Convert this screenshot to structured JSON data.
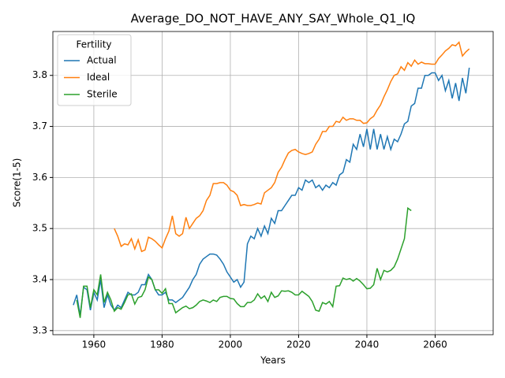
{
  "chart_data": {
    "type": "line",
    "title": "Average_DO_NOT_HAVE_ANY_SAY_Whole_Q1_IQ",
    "xlabel": "Years",
    "ylabel": "Score(1-5)",
    "legend_title": "Fertility",
    "legend_loc": "upper left",
    "grid": true,
    "xlim": [
      1948,
      2077
    ],
    "xticks": [
      1960,
      1980,
      2000,
      2020,
      2040,
      2060
    ],
    "ylim": [
      3.292,
      3.886
    ],
    "yticks": [
      3.3,
      3.4,
      3.5,
      3.6,
      3.7,
      3.8
    ],
    "series": [
      {
        "name": "Actual",
        "color": "#1f77b4",
        "x": [
          1954,
          1955,
          1956,
          1957,
          1958,
          1959,
          1960,
          1961,
          1962,
          1963,
          1964,
          1965,
          1966,
          1967,
          1968,
          1969,
          1970,
          1971,
          1972,
          1973,
          1974,
          1975,
          1976,
          1977,
          1978,
          1979,
          1980,
          1981,
          1982,
          1983,
          1984,
          1985,
          1986,
          1987,
          1988,
          1989,
          1990,
          1991,
          1992,
          1993,
          1994,
          1995,
          1996,
          1997,
          1998,
          1999,
          2000,
          2001,
          2002,
          2003,
          2004,
          2005,
          2006,
          2007,
          2008,
          2009,
          2010,
          2011,
          2012,
          2013,
          2014,
          2015,
          2016,
          2017,
          2018,
          2019,
          2020,
          2021,
          2022,
          2023,
          2024,
          2025,
          2026,
          2027,
          2028,
          2029,
          2030,
          2031,
          2032,
          2033,
          2034,
          2035,
          2036,
          2037,
          2038,
          2039,
          2040,
          2041,
          2042,
          2043,
          2044,
          2045,
          2046,
          2047,
          2048,
          2049,
          2050,
          2051,
          2052,
          2053,
          2054,
          2055,
          2056,
          2057,
          2058,
          2059,
          2060,
          2061,
          2062,
          2063,
          2064,
          2065,
          2066,
          2067,
          2068,
          2069,
          2070
        ],
        "values": [
          3.35,
          3.37,
          3.33,
          3.385,
          3.38,
          3.34,
          3.375,
          3.36,
          3.4,
          3.345,
          3.37,
          3.35,
          3.34,
          3.35,
          3.345,
          3.36,
          3.375,
          3.37,
          3.37,
          3.375,
          3.39,
          3.39,
          3.41,
          3.4,
          3.38,
          3.37,
          3.37,
          3.375,
          3.36,
          3.36,
          3.355,
          3.36,
          3.365,
          3.375,
          3.385,
          3.4,
          3.41,
          3.43,
          3.44,
          3.445,
          3.45,
          3.45,
          3.448,
          3.44,
          3.43,
          3.415,
          3.405,
          3.395,
          3.4,
          3.385,
          3.395,
          3.47,
          3.485,
          3.48,
          3.5,
          3.485,
          3.505,
          3.49,
          3.52,
          3.51,
          3.535,
          3.535,
          3.545,
          3.555,
          3.565,
          3.565,
          3.58,
          3.575,
          3.595,
          3.59,
          3.595,
          3.58,
          3.585,
          3.575,
          3.585,
          3.58,
          3.59,
          3.585,
          3.605,
          3.61,
          3.635,
          3.63,
          3.665,
          3.655,
          3.685,
          3.66,
          3.695,
          3.655,
          3.695,
          3.655,
          3.685,
          3.655,
          3.68,
          3.655,
          3.675,
          3.67,
          3.685,
          3.705,
          3.71,
          3.74,
          3.745,
          3.775,
          3.775,
          3.8,
          3.8,
          3.805,
          3.805,
          3.79,
          3.8,
          3.77,
          3.79,
          3.755,
          3.785,
          3.75,
          3.795,
          3.765,
          3.815
        ]
      },
      {
        "name": "Ideal",
        "color": "#ff7f0e",
        "x": [
          1966,
          1967,
          1968,
          1969,
          1970,
          1971,
          1972,
          1973,
          1974,
          1975,
          1976,
          1977,
          1978,
          1979,
          1980,
          1981,
          1982,
          1983,
          1984,
          1985,
          1986,
          1987,
          1988,
          1989,
          1990,
          1991,
          1992,
          1993,
          1994,
          1995,
          1996,
          1997,
          1998,
          1999,
          2000,
          2001,
          2002,
          2003,
          2004,
          2005,
          2006,
          2007,
          2008,
          2009,
          2010,
          2011,
          2012,
          2013,
          2014,
          2015,
          2016,
          2017,
          2018,
          2019,
          2020,
          2021,
          2022,
          2023,
          2024,
          2025,
          2026,
          2027,
          2028,
          2029,
          2030,
          2031,
          2032,
          2033,
          2034,
          2035,
          2036,
          2037,
          2038,
          2039,
          2040,
          2041,
          2042,
          2043,
          2044,
          2045,
          2046,
          2047,
          2048,
          2049,
          2050,
          2051,
          2052,
          2053,
          2054,
          2055,
          2056,
          2057,
          2058,
          2059,
          2060,
          2061,
          2062,
          2063,
          2064,
          2065,
          2066,
          2067,
          2068,
          2069,
          2070
        ],
        "values": [
          3.5,
          3.485,
          3.465,
          3.47,
          3.468,
          3.48,
          3.46,
          3.478,
          3.455,
          3.458,
          3.483,
          3.48,
          3.475,
          3.468,
          3.462,
          3.48,
          3.495,
          3.525,
          3.49,
          3.485,
          3.49,
          3.522,
          3.5,
          3.51,
          3.52,
          3.525,
          3.535,
          3.555,
          3.565,
          3.588,
          3.588,
          3.59,
          3.59,
          3.585,
          3.575,
          3.572,
          3.565,
          3.545,
          3.547,
          3.545,
          3.545,
          3.547,
          3.55,
          3.548,
          3.57,
          3.575,
          3.58,
          3.59,
          3.61,
          3.62,
          3.635,
          3.648,
          3.653,
          3.655,
          3.65,
          3.647,
          3.645,
          3.647,
          3.65,
          3.665,
          3.675,
          3.69,
          3.69,
          3.7,
          3.7,
          3.71,
          3.708,
          3.718,
          3.712,
          3.715,
          3.715,
          3.712,
          3.712,
          3.706,
          3.707,
          3.715,
          3.72,
          3.732,
          3.742,
          3.758,
          3.772,
          3.788,
          3.8,
          3.803,
          3.817,
          3.81,
          3.825,
          3.818,
          3.83,
          3.822,
          3.826,
          3.823,
          3.823,
          3.822,
          3.822,
          3.833,
          3.84,
          3.848,
          3.853,
          3.86,
          3.858,
          3.865,
          3.838,
          3.846,
          3.852
        ]
      },
      {
        "name": "Sterile",
        "color": "#2ca02c",
        "x": [
          1955,
          1956,
          1957,
          1958,
          1959,
          1960,
          1961,
          1962,
          1963,
          1964,
          1965,
          1966,
          1967,
          1968,
          1969,
          1970,
          1971,
          1972,
          1973,
          1974,
          1975,
          1976,
          1977,
          1978,
          1979,
          1980,
          1981,
          1982,
          1983,
          1984,
          1985,
          1986,
          1987,
          1988,
          1989,
          1990,
          1991,
          1992,
          1993,
          1994,
          1995,
          1996,
          1997,
          1998,
          1999,
          2000,
          2001,
          2002,
          2003,
          2004,
          2005,
          2006,
          2007,
          2008,
          2009,
          2010,
          2011,
          2012,
          2013,
          2014,
          2015,
          2016,
          2017,
          2018,
          2019,
          2020,
          2021,
          2022,
          2023,
          2024,
          2025,
          2026,
          2027,
          2028,
          2029,
          2030,
          2031,
          2032,
          2033,
          2034,
          2035,
          2036,
          2037,
          2038,
          2039,
          2040,
          2041,
          2042,
          2043,
          2044,
          2045,
          2046,
          2047,
          2048,
          2049,
          2050,
          2051,
          2052,
          2053
        ],
        "values": [
          3.36,
          3.325,
          3.387,
          3.387,
          3.345,
          3.38,
          3.37,
          3.41,
          3.355,
          3.375,
          3.36,
          3.338,
          3.345,
          3.342,
          3.355,
          3.37,
          3.372,
          3.352,
          3.365,
          3.367,
          3.38,
          3.405,
          3.4,
          3.38,
          3.38,
          3.373,
          3.382,
          3.353,
          3.353,
          3.335,
          3.34,
          3.345,
          3.348,
          3.343,
          3.345,
          3.35,
          3.357,
          3.36,
          3.358,
          3.355,
          3.36,
          3.357,
          3.365,
          3.367,
          3.367,
          3.363,
          3.362,
          3.353,
          3.347,
          3.347,
          3.355,
          3.355,
          3.36,
          3.372,
          3.363,
          3.368,
          3.357,
          3.375,
          3.365,
          3.368,
          3.378,
          3.377,
          3.378,
          3.375,
          3.37,
          3.37,
          3.377,
          3.372,
          3.367,
          3.357,
          3.34,
          3.338,
          3.355,
          3.352,
          3.357,
          3.347,
          3.387,
          3.388,
          3.403,
          3.4,
          3.402,
          3.397,
          3.402,
          3.397,
          3.39,
          3.382,
          3.383,
          3.39,
          3.422,
          3.4,
          3.418,
          3.415,
          3.418,
          3.425,
          3.44,
          3.46,
          3.48,
          3.54,
          3.535
        ]
      }
    ]
  }
}
